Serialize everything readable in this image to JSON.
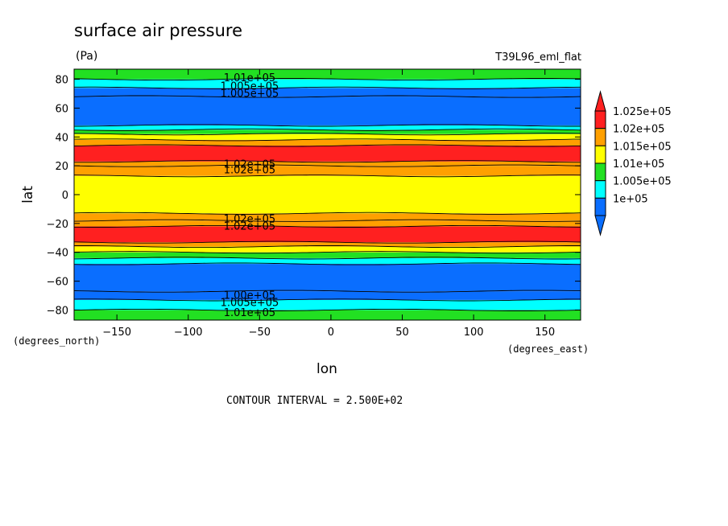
{
  "chart_data": {
    "type": "heatmap",
    "title": "surface air pressure",
    "units": "(Pa)",
    "dataset": "T39L96_eml_flat",
    "xlabel": "lon",
    "ylabel": "lat",
    "x_units": "(degrees_east)",
    "y_units": "(degrees_north)",
    "xlim": [
      -180,
      175
    ],
    "ylim": [
      -87,
      87
    ],
    "x_ticks": [
      -150,
      -100,
      -50,
      0,
      50,
      100,
      150
    ],
    "y_ticks": [
      -80,
      -60,
      -40,
      -20,
      0,
      20,
      40,
      60,
      80
    ],
    "contour_interval_text": "CONTOUR INTERVAL = 2.500E+02",
    "legend": {
      "placement": "right",
      "levels": [
        "1e+05",
        "1.005e+05",
        "1.01e+05",
        "1.015e+05",
        "1.02e+05",
        "1.025e+05"
      ],
      "colors": [
        "#0a6eff",
        "#00ffff",
        "#22e022",
        "#ffff00",
        "#ffa000",
        "#ff2020"
      ]
    },
    "latitude_bands": [
      {
        "lat_from": -87,
        "lat_to": -80,
        "value": 101250
      },
      {
        "lat_from": -80,
        "lat_to": -73,
        "value": 100750
      },
      {
        "lat_from": -73,
        "lat_to": -67,
        "value": 100250
      },
      {
        "lat_from": -67,
        "lat_to": -48,
        "value": 100000
      },
      {
        "lat_from": -48,
        "lat_to": -44,
        "value": 100500
      },
      {
        "lat_from": -44,
        "lat_to": -40,
        "value": 101000
      },
      {
        "lat_from": -40,
        "lat_to": -36,
        "value": 101500
      },
      {
        "lat_from": -36,
        "lat_to": -33,
        "value": 102000
      },
      {
        "lat_from": -33,
        "lat_to": -22,
        "value": 102500
      },
      {
        "lat_from": -22,
        "lat_to": -18,
        "value": 102250
      },
      {
        "lat_from": -18,
        "lat_to": -13,
        "value": 102000
      },
      {
        "lat_from": -13,
        "lat_to": 13,
        "value": 101750
      },
      {
        "lat_from": 13,
        "lat_to": 20,
        "value": 102000
      },
      {
        "lat_from": 20,
        "lat_to": 23,
        "value": 102250
      },
      {
        "lat_from": 23,
        "lat_to": 34,
        "value": 102500
      },
      {
        "lat_from": 34,
        "lat_to": 38,
        "value": 102000
      },
      {
        "lat_from": 38,
        "lat_to": 42,
        "value": 101500
      },
      {
        "lat_from": 42,
        "lat_to": 45,
        "value": 101000
      },
      {
        "lat_from": 45,
        "lat_to": 48,
        "value": 100500
      },
      {
        "lat_from": 48,
        "lat_to": 68,
        "value": 100000
      },
      {
        "lat_from": 68,
        "lat_to": 74,
        "value": 100250
      },
      {
        "lat_from": 74,
        "lat_to": 80,
        "value": 100750
      },
      {
        "lat_from": 80,
        "lat_to": 87,
        "value": 101250
      }
    ],
    "contour_labels": [
      {
        "text": "1.01e+05",
        "lon": -57,
        "lat": 81
      },
      {
        "text": "1.005e+05",
        "lon": -57,
        "lat": 75
      },
      {
        "text": "1.005e+05",
        "lon": -57,
        "lat": 70
      },
      {
        "text": "1.02e+05",
        "lon": -57,
        "lat": 21
      },
      {
        "text": "1.02e+05",
        "lon": -57,
        "lat": 17
      },
      {
        "text": "1.02e+05",
        "lon": -57,
        "lat": -17
      },
      {
        "text": "1.02e+05",
        "lon": -57,
        "lat": -22
      },
      {
        "text": "1.00e+05",
        "lon": -57,
        "lat": -70
      },
      {
        "text": "1.005e+05",
        "lon": -57,
        "lat": -75
      },
      {
        "text": "1.01e+05",
        "lon": -57,
        "lat": -82
      }
    ],
    "grid": false
  }
}
